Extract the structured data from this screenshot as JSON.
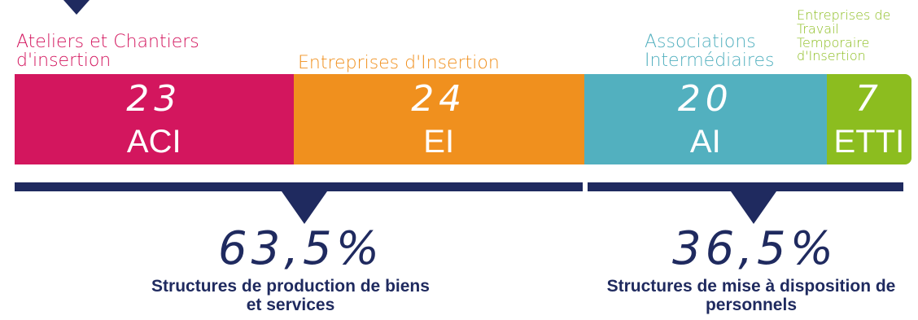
{
  "colors": {
    "navy": "#1f2a5f",
    "aci": "#d3165e",
    "ei": "#f0901e",
    "ai": "#52b0bf",
    "etti": "#8cbd1f"
  },
  "chart_data": {
    "type": "bar",
    "orientation": "horizontal-stacked",
    "title": "",
    "categories": [
      "ACI",
      "EI",
      "AI",
      "ETTI"
    ],
    "category_labels": [
      "Ateliers et Chantiers d'insertion",
      "Entreprises d'Insertion",
      "Associations Intermédiaires",
      "Entreprises de Travail Temporaire d'Insertion"
    ],
    "values": [
      23,
      24,
      20,
      7
    ],
    "data_labels": [
      "23",
      "24",
      "20",
      "7"
    ],
    "groups": [
      {
        "percent": 63.5,
        "percent_label": "63,5%",
        "description": "Structures de production de biens et services",
        "members": [
          "ACI",
          "EI"
        ]
      },
      {
        "percent": 36.5,
        "percent_label": "36,5%",
        "description": "Structures de mise à disposition de personnels",
        "members": [
          "AI",
          "ETTI"
        ]
      }
    ]
  }
}
